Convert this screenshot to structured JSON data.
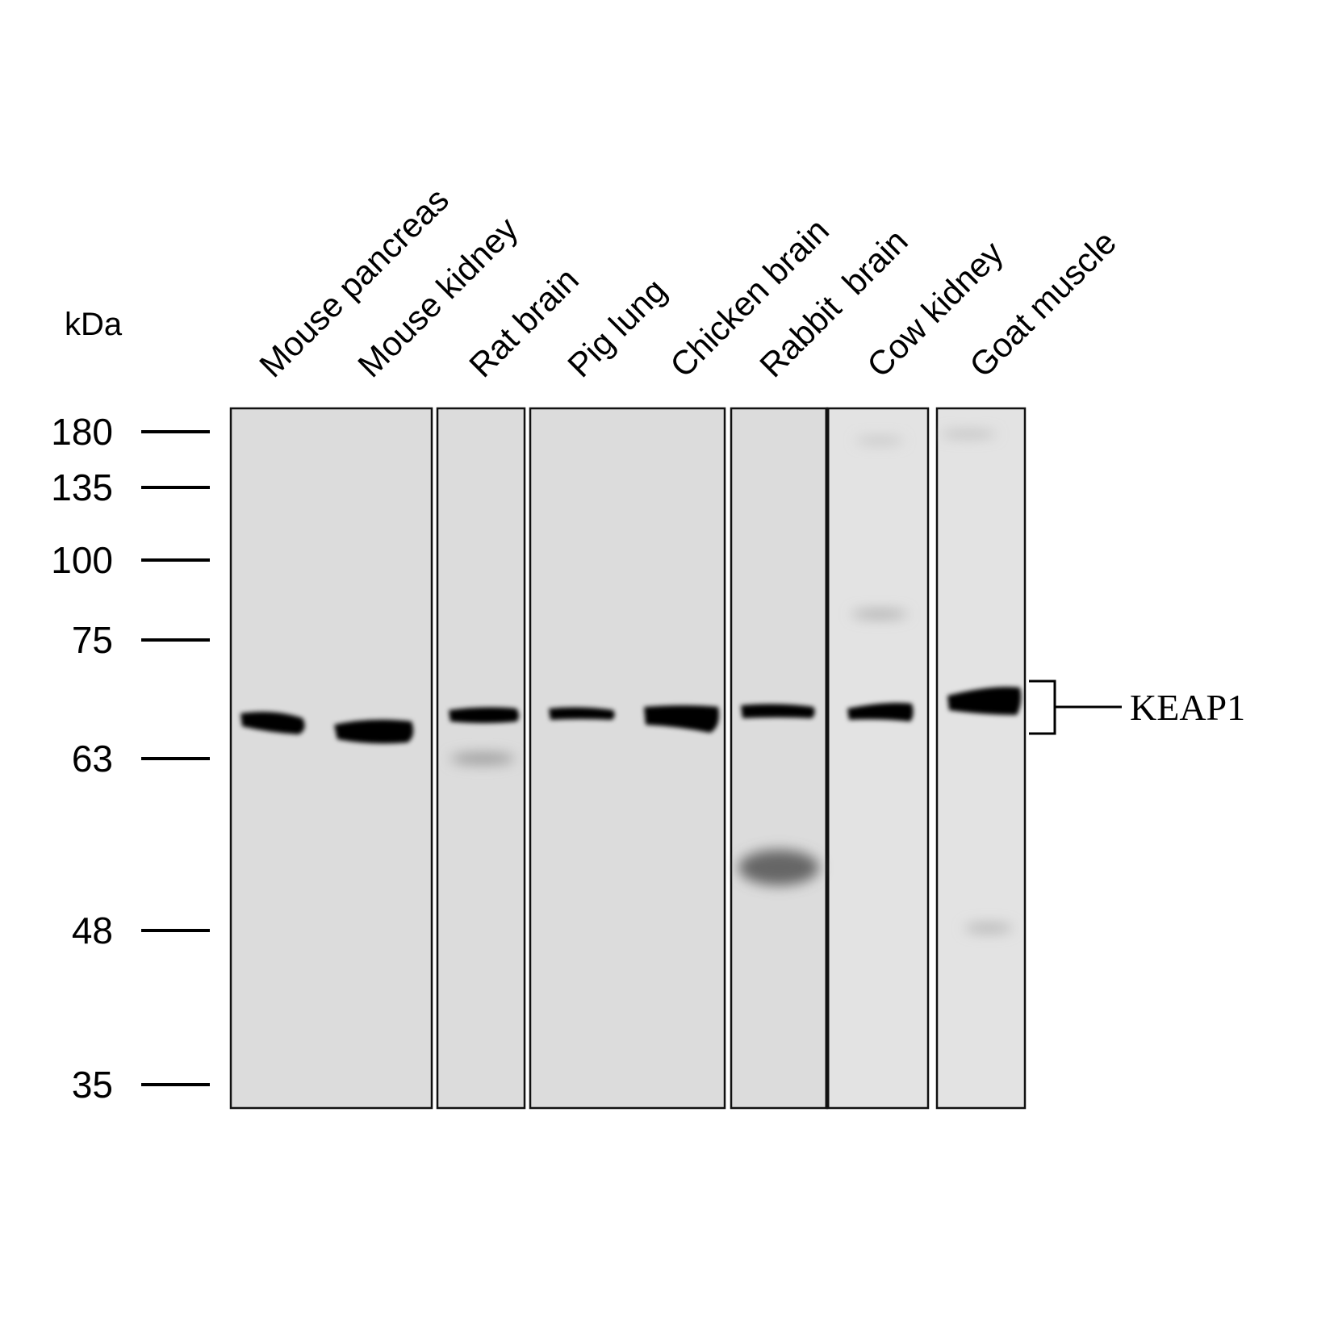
{
  "axis_unit": "kDa",
  "markers": [
    "180",
    "135",
    "100",
    "75",
    "63",
    "48",
    "35"
  ],
  "lanes": [
    "Mouse pancreas",
    "Mouse kidney",
    "Rat brain",
    "Pig lung",
    "Chicken brain",
    "Rabbit  brain",
    "Cow kidney",
    "Goat muscle"
  ],
  "band_label": "KEAP1"
}
